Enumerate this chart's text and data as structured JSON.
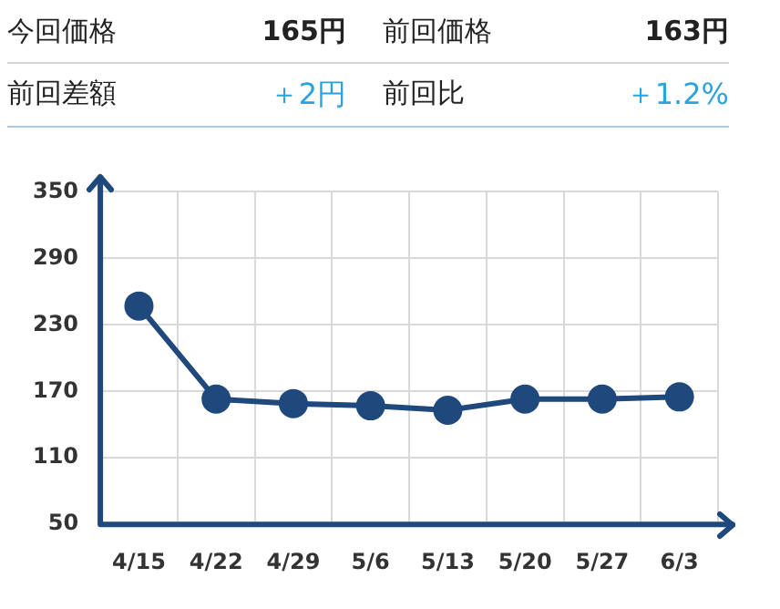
{
  "chart_data": {
    "type": "line",
    "annotations": [
      "今回価格",
      "165円",
      "前回価格",
      "163円",
      "前回差額",
      "＋2円",
      "前回比",
      "＋1.2%"
    ],
    "categories": [
      "4/15",
      "4/22",
      "4/29",
      "5/6",
      "5/13",
      "5/20",
      "5/27",
      "6/3"
    ],
    "series": [
      {
        "color": "#1f487c",
        "values": [
          247,
          163,
          159,
          157,
          153,
          163,
          163,
          165
        ]
      }
    ],
    "ylim": [
      50,
      350
    ],
    "yticks": [
      50,
      110,
      170,
      230,
      290,
      350
    ],
    "grid": true,
    "legend": false,
    "marker": "circle",
    "line_style": "solid"
  }
}
